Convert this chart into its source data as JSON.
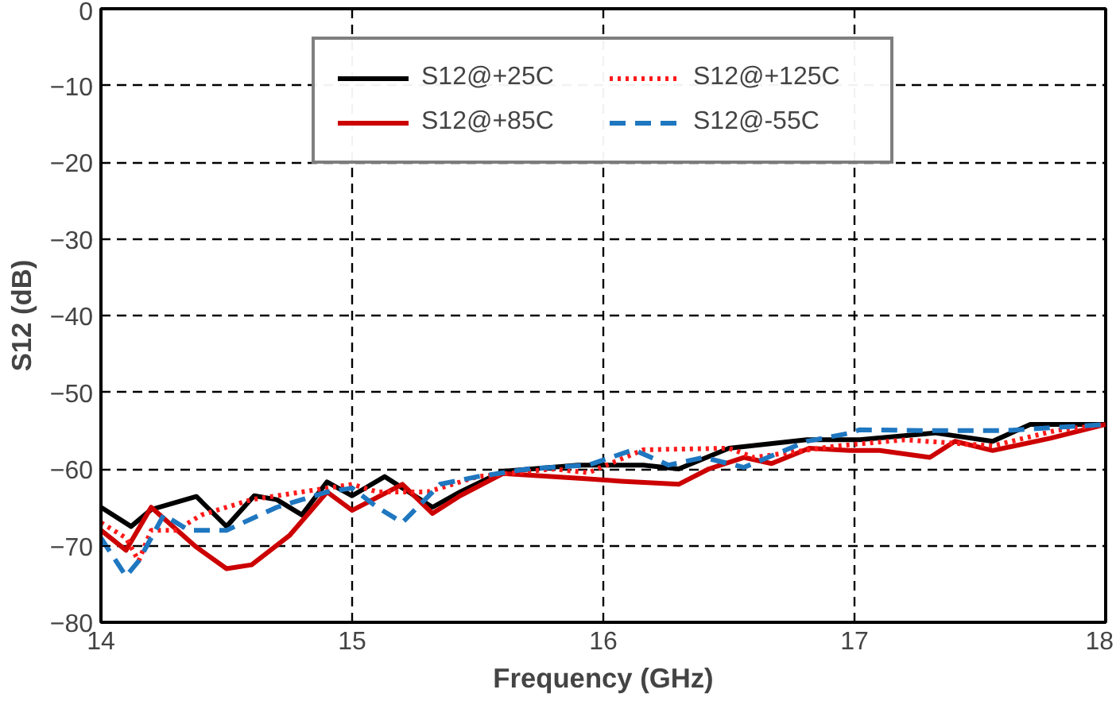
{
  "chart_data": {
    "type": "line",
    "xlabel": "Frequency (GHz)",
    "ylabel": "S12 (dB)",
    "xlim": [
      14,
      18
    ],
    "ylim": [
      -80,
      0
    ],
    "xticks": [
      14,
      15,
      16,
      17,
      18
    ],
    "yticks": [
      -80,
      -70,
      -60,
      -50,
      -40,
      -30,
      -20,
      -10,
      0
    ],
    "grid": true,
    "legend": "top",
    "series": [
      {
        "name": "S12@+25C",
        "color": "#000000",
        "line_style": "solid",
        "x": [
          14.0,
          14.12,
          14.2,
          14.38,
          14.5,
          14.61,
          14.7,
          14.8,
          14.9,
          15.0,
          15.13,
          15.32,
          15.43,
          15.6,
          15.9,
          16.16,
          16.3,
          16.5,
          16.81,
          17.02,
          17.32,
          17.55,
          17.7,
          18.0
        ],
        "values": [
          -65,
          -67.5,
          -65.3,
          -63.6,
          -67.5,
          -63.5,
          -64,
          -66,
          -61.7,
          -63.5,
          -61,
          -65,
          -63,
          -60.3,
          -59.5,
          -59.5,
          -60,
          -57.3,
          -56.2,
          -56.2,
          -55.3,
          -56.4,
          -54.2,
          -54.2
        ]
      },
      {
        "name": "S12@+85C",
        "color": "#cc0000",
        "line_style": "solid",
        "x": [
          14.0,
          14.1,
          14.2,
          14.38,
          14.5,
          14.6,
          14.75,
          14.9,
          15.0,
          15.2,
          15.32,
          15.43,
          15.6,
          15.94,
          16.07,
          16.3,
          16.42,
          16.56,
          16.67,
          16.82,
          16.98,
          17.1,
          17.3,
          17.4,
          17.55,
          17.78,
          18.0
        ],
        "values": [
          -68,
          -70.6,
          -65,
          -70.2,
          -73,
          -72.5,
          -68.7,
          -63,
          -65.4,
          -62,
          -65.8,
          -63.5,
          -60.6,
          -61.3,
          -61.6,
          -62,
          -60,
          -58.5,
          -59.3,
          -57.3,
          -57.6,
          -57.6,
          -58.5,
          -56.4,
          -57.6,
          -56,
          -54.2
        ]
      },
      {
        "name": "S12@+125C",
        "color": "#ff1a1a",
        "line_style": "dotted",
        "x": [
          14.0,
          14.1,
          14.15,
          14.2,
          14.3,
          14.4,
          14.5,
          14.6,
          14.8,
          15.0,
          15.1,
          15.3,
          15.5,
          15.8,
          15.94,
          16.16,
          16.5,
          16.6,
          16.93,
          17.2,
          17.55,
          17.8,
          18.0
        ],
        "values": [
          -67,
          -69,
          -72,
          -68,
          -68,
          -66,
          -65,
          -64,
          -63,
          -62,
          -63,
          -63,
          -61,
          -60,
          -60.5,
          -57.5,
          -57.3,
          -58.5,
          -57,
          -56.2,
          -57,
          -55,
          -54.2
        ]
      },
      {
        "name": "S12@-55C",
        "color": "#1f77c0",
        "line_style": "dashed",
        "x": [
          14.0,
          14.1,
          14.15,
          14.25,
          14.35,
          14.5,
          14.7,
          14.9,
          15.0,
          15.1,
          15.2,
          15.35,
          15.5,
          15.7,
          15.94,
          16.12,
          16.26,
          16.4,
          16.56,
          16.81,
          16.97,
          17.02,
          17.3,
          17.6,
          18.0
        ],
        "values": [
          -69,
          -74,
          -72,
          -66,
          -68,
          -68,
          -65,
          -63,
          -62.5,
          -65,
          -67,
          -62,
          -61,
          -60,
          -59.5,
          -57.5,
          -59.5,
          -58.5,
          -59.8,
          -56.4,
          -55.4,
          -54.9,
          -55,
          -55,
          -54.2
        ]
      }
    ]
  }
}
